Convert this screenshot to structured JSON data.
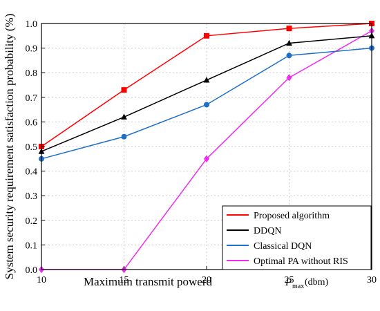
{
  "chart_data": {
    "type": "line",
    "xlabel": "Maximum transmit powerd",
    "xlabel_symbol": "P",
    "xlabel_subscript": "max",
    "xlabel_unit": "(dbm)",
    "ylabel": "System security requirement satisfaction probability (%)",
    "x": [
      10,
      15,
      20,
      25,
      30
    ],
    "xlim": [
      10,
      30
    ],
    "ylim": [
      0,
      1.0
    ],
    "xticks": [
      "10",
      "15",
      "20",
      "25",
      "30"
    ],
    "yticks": [
      "0.0",
      "0.1",
      "0.2",
      "0.3",
      "0.4",
      "0.5",
      "0.6",
      "0.7",
      "0.8",
      "0.9",
      "1.0"
    ],
    "grid": true,
    "legend_position": "bottom-right",
    "series": [
      {
        "name": "Proposed algorithm",
        "color": "#ff0000",
        "marker": "square",
        "values": [
          0.5,
          0.73,
          0.95,
          0.98,
          1.0
        ]
      },
      {
        "name": "DDQN",
        "color": "#000000",
        "marker": "triangle",
        "values": [
          0.48,
          0.62,
          0.77,
          0.92,
          0.95
        ]
      },
      {
        "name": "Classical DQN",
        "color": "#1f6fc8",
        "marker": "circle",
        "values": [
          0.45,
          0.54,
          0.67,
          0.87,
          0.9
        ]
      },
      {
        "name": "Optimal PA without RIS",
        "color": "#ee2bee",
        "marker": "diamond",
        "values": [
          0.0,
          0.0,
          0.45,
          0.78,
          0.97
        ]
      }
    ]
  }
}
